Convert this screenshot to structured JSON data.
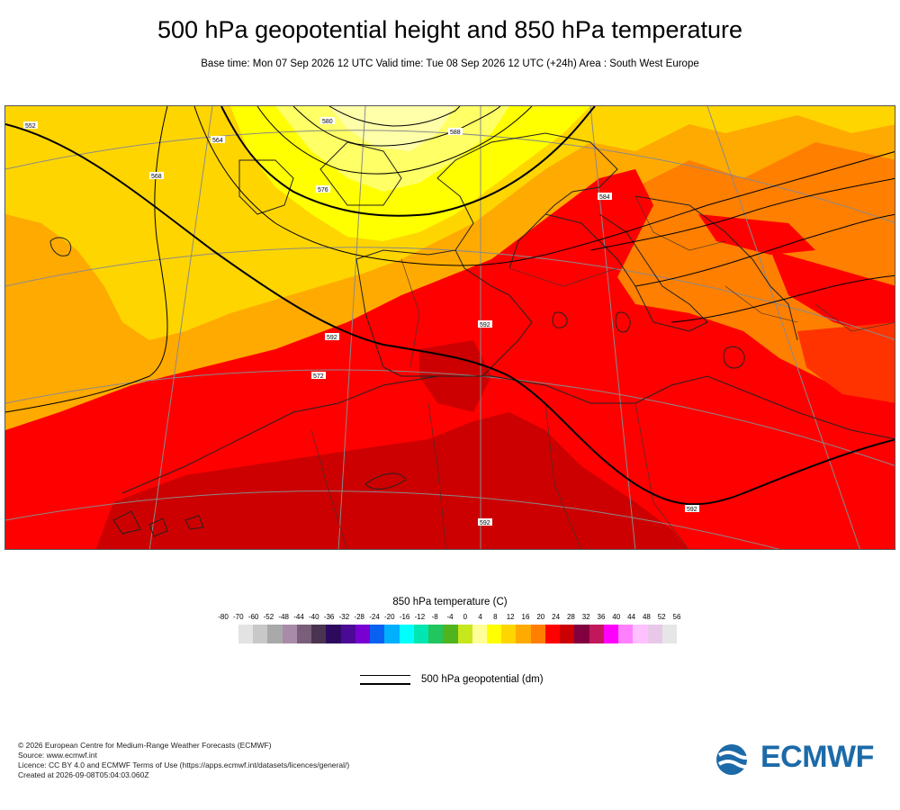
{
  "header": {
    "title": "500 hPa geopotential height and 850 hPa temperature",
    "subtitle": "Base time: Mon 07 Sep 2026 12 UTC Valid time: Tue 08 Sep 2026 12 UTC (+24h) Area : South West Europe"
  },
  "map": {
    "contour_labels": [
      "552",
      "564",
      "576",
      "588",
      "580",
      "584",
      "592",
      "592",
      "592",
      "592",
      "568",
      "572"
    ],
    "colors": {
      "land_outline": "#222222",
      "contour": "#000000",
      "graticule": "#888888"
    }
  },
  "legend": {
    "title": "850 hPa temperature (C)",
    "ticks": [
      "-80",
      "-70",
      "-60",
      "-52",
      "-48",
      "-44",
      "-40",
      "-36",
      "-32",
      "-28",
      "-24",
      "-20",
      "-16",
      "-12",
      "-8",
      "-4",
      "0",
      "4",
      "8",
      "12",
      "16",
      "20",
      "24",
      "28",
      "32",
      "36",
      "40",
      "44",
      "48",
      "52",
      "56"
    ],
    "colors": [
      "#e3e3e3",
      "#c8c8c8",
      "#a9a9a9",
      "#a88ba8",
      "#7a5f7a",
      "#4a3350",
      "#2d0a5e",
      "#4b0a96",
      "#7800d0",
      "#0a60f0",
      "#00b0ff",
      "#00ffff",
      "#00e6b0",
      "#22c55e",
      "#4fb41d",
      "#c6e61e",
      "#ffff99",
      "#ffff00",
      "#ffd500",
      "#ffaa00",
      "#ff7f00",
      "#ff0000",
      "#cc0000",
      "#800040",
      "#c2185b",
      "#ff00ff",
      "#ff80ff",
      "#ffc0ff",
      "#e8c8e8",
      "#e6e6e6"
    ],
    "line_label": "500 hPa geopotential (dm)"
  },
  "footer": {
    "line1": "© 2026 European Centre for Medium-Range Weather Forecasts (ECMWF)",
    "line2": "Source: www.ecmwf.int",
    "line3": "Licence: CC BY 4.0 and ECMWF Terms of Use (https://apps.ecmwf.int/datasets/licences/general/)",
    "line4": "Created at 2026-09-08T05:04:03.060Z",
    "logo_text": "ECMWF"
  }
}
